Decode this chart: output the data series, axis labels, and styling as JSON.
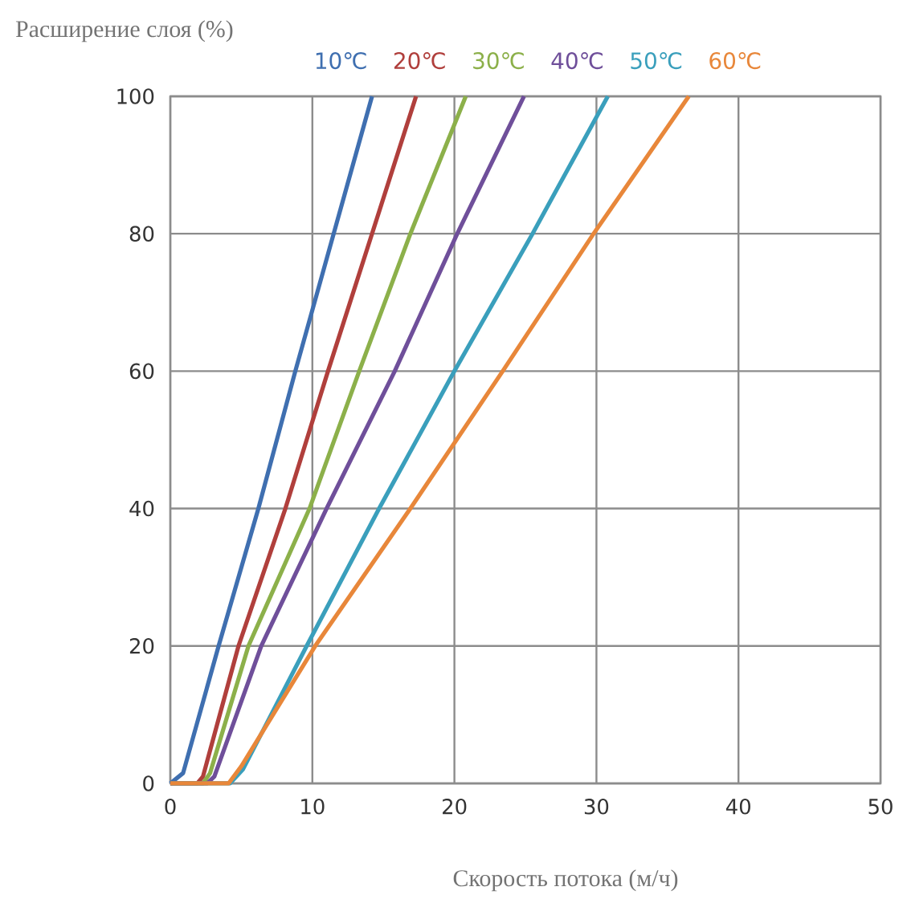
{
  "chart_data": {
    "type": "line",
    "xlabel": "Скорость потока (м/ч)",
    "ylabel": "Расширение слоя (%)",
    "xlim": [
      0,
      50
    ],
    "ylim": [
      0,
      100
    ],
    "xticks": [
      0,
      10,
      20,
      30,
      40,
      50
    ],
    "yticks": [
      0,
      20,
      40,
      60,
      80,
      100
    ],
    "grid": true,
    "marker": "none",
    "line_style": "solid",
    "series": [
      {
        "name": "10℃",
        "color": "#3f6fb0",
        "x": [
          0,
          0.9,
          3.4,
          6.2,
          8.8,
          11.5,
          14.2
        ],
        "values": [
          0,
          1.5,
          20,
          40,
          60,
          80,
          100
        ]
      },
      {
        "name": "20℃",
        "color": "#b03f3c",
        "x": [
          0,
          1.9,
          2.3,
          4.8,
          8.1,
          11.1,
          14.2,
          17.3
        ],
        "values": [
          0,
          0,
          1,
          20,
          40,
          60,
          80,
          100
        ]
      },
      {
        "name": "30℃",
        "color": "#8cb04a",
        "x": [
          0,
          2.3,
          2.8,
          5.5,
          9.8,
          13.3,
          16.9,
          20.8
        ],
        "values": [
          0,
          0,
          1.5,
          20,
          40,
          60,
          80,
          100
        ]
      },
      {
        "name": "40℃",
        "color": "#6f4f9a",
        "x": [
          0,
          2.6,
          3.1,
          6.4,
          11,
          15.8,
          20.2,
          24.9
        ],
        "values": [
          0,
          0,
          1,
          20,
          40,
          60,
          80,
          100
        ]
      },
      {
        "name": "50℃",
        "color": "#3a9fbc",
        "x": [
          0,
          4.2,
          5.1,
          9.6,
          14.7,
          20,
          25.5,
          30.8
        ],
        "values": [
          0,
          0,
          2,
          20,
          40,
          60,
          80,
          100
        ]
      },
      {
        "name": "60℃",
        "color": "#e8873a",
        "x": [
          0,
          4.1,
          5,
          10.2,
          16.9,
          23.4,
          29.8,
          36.5
        ],
        "values": [
          0,
          0,
          2.5,
          20,
          40,
          60,
          80,
          100
        ]
      }
    ]
  }
}
